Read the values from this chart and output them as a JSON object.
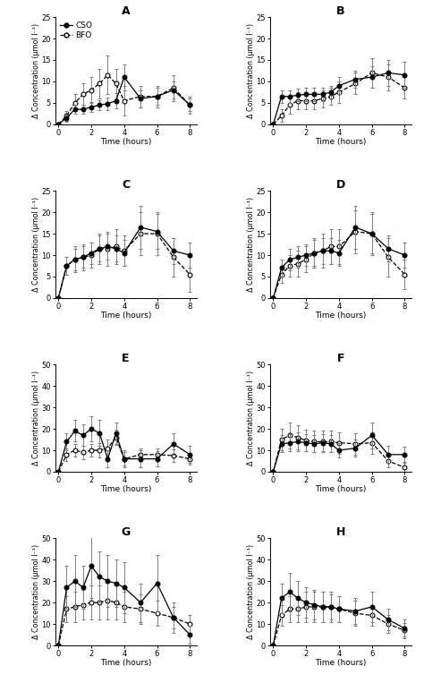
{
  "panels": [
    {
      "label": "A",
      "ylim": [
        0,
        25
      ],
      "yticks": [
        0,
        5,
        10,
        15,
        20,
        25
      ],
      "x_cso": [
        0,
        0.5,
        1,
        1.5,
        2,
        2.5,
        3,
        3.5,
        4,
        5,
        6,
        7,
        8
      ],
      "y_cso": [
        0,
        1.5,
        3.5,
        3.5,
        4.0,
        4.5,
        4.8,
        5.5,
        11,
        6.0,
        6.5,
        8.0,
        4.5
      ],
      "e_cso": [
        0,
        0.8,
        1.0,
        1.0,
        1.2,
        1.2,
        1.5,
        1.8,
        3.0,
        2.0,
        2.0,
        2.0,
        1.5
      ],
      "x_bfo": [
        0,
        0.5,
        1,
        1.5,
        2,
        2.5,
        3,
        3.5,
        4,
        5,
        6,
        7,
        8
      ],
      "y_bfo": [
        0,
        2.0,
        5.0,
        7.0,
        8.0,
        9.5,
        11.5,
        9.5,
        5.5,
        6.5,
        6.5,
        8.5,
        4.5
      ],
      "e_bfo": [
        0,
        1.2,
        2.0,
        2.5,
        3.0,
        3.5,
        4.5,
        3.5,
        3.5,
        2.5,
        2.5,
        3.0,
        2.0
      ]
    },
    {
      "label": "B",
      "ylim": [
        0,
        25
      ],
      "yticks": [
        0,
        5,
        10,
        15,
        20,
        25
      ],
      "x_cso": [
        0,
        0.5,
        1,
        1.5,
        2,
        2.5,
        3,
        3.5,
        4,
        5,
        6,
        7,
        8
      ],
      "y_cso": [
        0,
        6.5,
        6.5,
        6.8,
        7.0,
        7.0,
        7.0,
        7.5,
        9.0,
        10.5,
        11.0,
        12.0,
        11.5
      ],
      "e_cso": [
        0,
        1.5,
        1.5,
        1.5,
        1.5,
        1.5,
        1.5,
        1.5,
        2.0,
        2.0,
        2.5,
        3.0,
        3.0
      ],
      "x_bfo": [
        0,
        0.5,
        1,
        1.5,
        2,
        2.5,
        3,
        3.5,
        4,
        5,
        6,
        7,
        8
      ],
      "y_bfo": [
        0,
        2.0,
        4.5,
        5.5,
        5.5,
        5.5,
        6.0,
        6.5,
        7.5,
        9.5,
        12.0,
        11.0,
        8.5
      ],
      "e_bfo": [
        0,
        1.5,
        2.0,
        2.0,
        2.0,
        2.0,
        2.0,
        2.0,
        2.5,
        2.5,
        3.5,
        3.0,
        2.5
      ]
    },
    {
      "label": "C",
      "ylim": [
        0,
        25
      ],
      "yticks": [
        0,
        5,
        10,
        15,
        20,
        25
      ],
      "x_cso": [
        0,
        0.5,
        1,
        1.5,
        2,
        2.5,
        3,
        3.5,
        4,
        5,
        6,
        7,
        8
      ],
      "y_cso": [
        0,
        7.5,
        9.0,
        9.5,
        10.5,
        11.5,
        12.0,
        11.5,
        10.5,
        16.5,
        15.5,
        11.0,
        10.0
      ],
      "e_cso": [
        0,
        2.0,
        2.5,
        2.5,
        2.5,
        3.0,
        3.0,
        3.0,
        3.0,
        5.0,
        4.0,
        3.0,
        3.0
      ],
      "x_bfo": [
        0,
        0.5,
        1,
        1.5,
        2,
        2.5,
        3,
        3.5,
        4,
        5,
        6,
        7,
        8
      ],
      "y_bfo": [
        0,
        7.5,
        9.0,
        9.5,
        10.0,
        11.5,
        11.5,
        12.0,
        11.0,
        15.0,
        15.0,
        9.5,
        5.5
      ],
      "e_bfo": [
        0,
        2.0,
        3.0,
        3.0,
        3.0,
        3.5,
        4.0,
        4.0,
        3.5,
        5.0,
        5.0,
        4.5,
        4.0
      ]
    },
    {
      "label": "D",
      "ylim": [
        0,
        25
      ],
      "yticks": [
        0,
        5,
        10,
        15,
        20,
        25
      ],
      "x_cso": [
        0,
        0.5,
        1,
        1.5,
        2,
        2.5,
        3,
        3.5,
        4,
        5,
        6,
        7,
        8
      ],
      "y_cso": [
        0,
        7.0,
        9.0,
        9.5,
        10.0,
        10.5,
        11.0,
        11.0,
        10.5,
        16.5,
        15.0,
        11.5,
        10.0
      ],
      "e_cso": [
        0,
        2.0,
        2.5,
        2.5,
        2.5,
        3.0,
        3.0,
        3.0,
        3.0,
        5.0,
        4.5,
        3.0,
        3.0
      ],
      "x_bfo": [
        0,
        0.5,
        1,
        1.5,
        2,
        2.5,
        3,
        3.5,
        4,
        5,
        6,
        7,
        8
      ],
      "y_bfo": [
        0,
        5.5,
        7.5,
        8.0,
        9.0,
        10.5,
        11.0,
        12.0,
        12.0,
        15.5,
        15.0,
        9.5,
        5.5
      ],
      "e_bfo": [
        0,
        2.0,
        2.5,
        3.0,
        3.0,
        3.5,
        4.0,
        4.0,
        4.0,
        5.0,
        5.0,
        4.5,
        3.5
      ]
    },
    {
      "label": "E",
      "ylim": [
        0,
        50
      ],
      "yticks": [
        0,
        10,
        20,
        30,
        40,
        50
      ],
      "x_cso": [
        0,
        0.5,
        1,
        1.5,
        2,
        2.5,
        3,
        3.5,
        4,
        5,
        6,
        7,
        8
      ],
      "y_cso": [
        0,
        14.0,
        19.0,
        17.0,
        20.0,
        18.0,
        6.0,
        18.0,
        6.0,
        6.0,
        6.0,
        13.0,
        8.0
      ],
      "e_cso": [
        0,
        4.0,
        5.0,
        5.0,
        6.0,
        6.0,
        4.0,
        5.0,
        4.0,
        4.0,
        3.5,
        5.0,
        4.0
      ],
      "x_bfo": [
        0,
        0.5,
        1,
        1.5,
        2,
        2.5,
        3,
        3.5,
        4,
        5,
        6,
        7,
        8
      ],
      "y_bfo": [
        0,
        8.0,
        10.0,
        9.0,
        10.0,
        10.0,
        11.0,
        16.0,
        6.0,
        8.0,
        8.0,
        7.5,
        6.0
      ],
      "e_bfo": [
        0,
        3.0,
        3.0,
        3.0,
        3.0,
        3.5,
        4.0,
        3.5,
        3.0,
        3.0,
        3.0,
        3.0,
        2.5
      ]
    },
    {
      "label": "F",
      "ylim": [
        0,
        50
      ],
      "yticks": [
        0,
        10,
        20,
        30,
        40,
        50
      ],
      "x_cso": [
        0,
        0.5,
        1,
        1.5,
        2,
        2.5,
        3,
        3.5,
        4,
        5,
        6,
        7,
        8
      ],
      "y_cso": [
        0,
        13.0,
        13.5,
        14.0,
        13.5,
        13.0,
        13.5,
        13.0,
        10.0,
        11.0,
        17.0,
        8.0,
        8.0
      ],
      "e_cso": [
        0,
        4.0,
        4.0,
        4.5,
        4.0,
        4.0,
        4.0,
        4.0,
        3.5,
        4.0,
        6.0,
        4.0,
        3.5
      ],
      "x_bfo": [
        0,
        0.5,
        1,
        1.5,
        2,
        2.5,
        3,
        3.5,
        4,
        5,
        6,
        7,
        8
      ],
      "y_bfo": [
        0,
        15.0,
        17.0,
        16.0,
        14.5,
        14.0,
        14.0,
        14.0,
        13.5,
        13.0,
        13.5,
        5.0,
        2.0
      ],
      "e_bfo": [
        0,
        5.0,
        6.0,
        5.5,
        5.0,
        5.0,
        5.0,
        5.0,
        5.0,
        5.0,
        5.0,
        3.0,
        2.0
      ]
    },
    {
      "label": "G",
      "ylim": [
        0,
        50
      ],
      "yticks": [
        0,
        10,
        20,
        30,
        40,
        50
      ],
      "x_cso": [
        0,
        0.5,
        1,
        1.5,
        2,
        2.5,
        3,
        3.5,
        4,
        5,
        6,
        7,
        8
      ],
      "y_cso": [
        0,
        27.0,
        30.0,
        27.0,
        37.0,
        32.0,
        30.0,
        29.0,
        27.0,
        20.0,
        29.0,
        13.0,
        5.0
      ],
      "e_cso": [
        0,
        10.0,
        12.0,
        10.0,
        15.0,
        12.0,
        12.0,
        11.0,
        12.0,
        9.0,
        13.0,
        7.0,
        4.0
      ],
      "x_bfo": [
        0,
        0.5,
        1,
        1.5,
        2,
        2.5,
        3,
        3.5,
        4,
        5,
        6,
        7,
        8
      ],
      "y_bfo": [
        0,
        17.0,
        18.0,
        19.0,
        20.0,
        20.0,
        21.0,
        20.0,
        18.0,
        17.0,
        15.0,
        13.0,
        10.0
      ],
      "e_bfo": [
        0,
        6.0,
        7.0,
        7.0,
        8.0,
        8.0,
        9.0,
        8.0,
        7.0,
        7.0,
        6.0,
        5.0,
        4.0
      ]
    },
    {
      "label": "H",
      "ylim": [
        0,
        50
      ],
      "yticks": [
        0,
        10,
        20,
        30,
        40,
        50
      ],
      "x_cso": [
        0,
        0.5,
        1,
        1.5,
        2,
        2.5,
        3,
        3.5,
        4,
        5,
        6,
        7,
        8
      ],
      "y_cso": [
        0,
        22.0,
        25.0,
        22.0,
        20.0,
        19.0,
        18.0,
        18.0,
        17.0,
        16.0,
        18.0,
        12.0,
        8.0
      ],
      "e_cso": [
        0,
        7.0,
        9.0,
        8.0,
        7.0,
        7.0,
        7.0,
        6.0,
        6.0,
        6.0,
        7.0,
        5.0,
        4.0
      ],
      "x_bfo": [
        0,
        0.5,
        1,
        1.5,
        2,
        2.5,
        3,
        3.5,
        4,
        5,
        6,
        7,
        8
      ],
      "y_bfo": [
        0,
        14.0,
        17.0,
        17.0,
        18.0,
        18.0,
        18.0,
        18.0,
        17.0,
        15.0,
        14.0,
        10.0,
        7.0
      ],
      "e_bfo": [
        0,
        5.0,
        6.0,
        6.0,
        7.0,
        7.0,
        7.0,
        7.0,
        6.0,
        6.0,
        5.0,
        4.0,
        3.5
      ]
    }
  ],
  "cso_color": "#000000",
  "bfo_color": "#000000",
  "ylabel": "Δ Concentration (μmol l⁻¹)",
  "xlabel": "Time (hours)",
  "background_color": "#ffffff",
  "markersize": 3.5,
  "linewidth": 0.9,
  "elinewidth": 0.7,
  "capsize": 1.5,
  "ecolor": "#808080"
}
